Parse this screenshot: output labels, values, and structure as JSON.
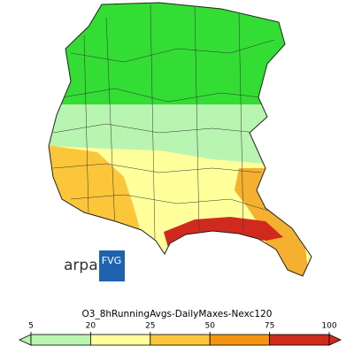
{
  "logo": {
    "left": "arpa",
    "right": "FVG"
  },
  "colorbar": {
    "title": "O3_8hRunningAvgs-DailyMaxes-Nexc120",
    "ticks": [
      5,
      20,
      25,
      50,
      75,
      100
    ],
    "under_color": "#b8f5b0",
    "colors": [
      "#b8f5b0",
      "#ffff9c",
      "#fcc63a",
      "#f5920f",
      "#d02a1e"
    ],
    "over_color": "#d02a1e"
  }
}
